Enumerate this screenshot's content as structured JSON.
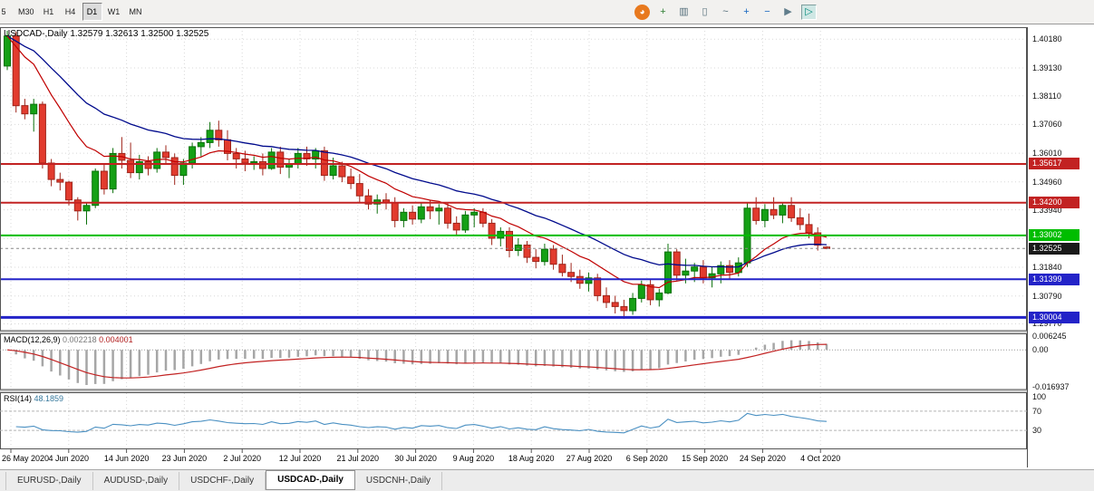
{
  "toolbar": {
    "timeframes": [
      {
        "label": "5",
        "active": false
      },
      {
        "label": "M30",
        "active": false
      },
      {
        "label": "H1",
        "active": false
      },
      {
        "label": "H4",
        "active": false
      },
      {
        "label": "D1",
        "active": true
      },
      {
        "label": "W1",
        "active": false
      },
      {
        "label": "MN",
        "active": false
      }
    ],
    "icons": [
      {
        "name": "mql-community-icon",
        "glyph": "◕",
        "color": "#ffffff",
        "bg": "#e8791e",
        "shape": "disc"
      },
      {
        "name": "new-order-icon",
        "glyph": "+",
        "color": "#2e7d32"
      },
      {
        "name": "chart-bars-icon",
        "glyph": "▥",
        "color": "#546e7a"
      },
      {
        "name": "chart-candles-icon",
        "glyph": "▯",
        "color": "#546e7a"
      },
      {
        "name": "chart-line-icon",
        "glyph": "~",
        "color": "#546e7a"
      },
      {
        "name": "zoom-in-icon",
        "glyph": "+",
        "color": "#1565c0"
      },
      {
        "name": "zoom-out-icon",
        "glyph": "−",
        "color": "#1565c0"
      },
      {
        "name": "auto-scroll-icon",
        "glyph": "▶",
        "color": "#607d8b"
      },
      {
        "name": "chart-shift-icon",
        "glyph": "▷",
        "color": "#00897b",
        "pressed": true
      }
    ]
  },
  "chart_data": {
    "type": "candlestick",
    "symbol": "USDCAD-",
    "timeframe": "Daily",
    "title_symbol": "USDCAD-,Daily",
    "ohlc_text": {
      "open": "1.32579",
      "high": "1.32613",
      "low": "1.32500",
      "close": "1.32525"
    },
    "dates": [
      "26 May",
      "27 May",
      "28 May",
      "29 May",
      "1 Jun",
      "2 Jun",
      "3 Jun",
      "4 Jun",
      "5 Jun",
      "8 Jun",
      "9 Jun",
      "10 Jun",
      "11 Jun",
      "12 Jun",
      "15 Jun",
      "16 Jun",
      "17 Jun",
      "18 Jun",
      "19 Jun",
      "22 Jun",
      "23 Jun",
      "24 Jun",
      "25 Jun",
      "26 Jun",
      "29 Jun",
      "30 Jun",
      "1 Jul",
      "2 Jul",
      "3 Jul",
      "6 Jul",
      "7 Jul",
      "8 Jul",
      "9 Jul",
      "10 Jul",
      "13 Jul",
      "14 Jul",
      "15 Jul",
      "16 Jul",
      "17 Jul",
      "20 Jul",
      "21 Jul",
      "22 Jul",
      "23 Jul",
      "24 Jul",
      "27 Jul",
      "28 Jul",
      "29 Jul",
      "30 Jul",
      "31 Jul",
      "3 Aug",
      "4 Aug",
      "5 Aug",
      "6 Aug",
      "7 Aug",
      "10 Aug",
      "11 Aug",
      "12 Aug",
      "13 Aug",
      "14 Aug",
      "17 Aug",
      "18 Aug",
      "19 Aug",
      "20 Aug",
      "21 Aug",
      "24 Aug",
      "25 Aug",
      "26 Aug",
      "27 Aug",
      "28 Aug",
      "31 Aug",
      "1 Sep",
      "2 Sep",
      "3 Sep",
      "4 Sep",
      "7 Sep",
      "8 Sep",
      "9 Sep",
      "10 Sep",
      "11 Sep",
      "14 Sep",
      "15 Sep",
      "16 Sep",
      "17 Sep",
      "18 Sep",
      "21 Sep",
      "22 Sep",
      "23 Sep",
      "24 Sep",
      "25 Sep",
      "28 Sep",
      "29 Sep",
      "30 Sep",
      "1 Oct",
      "2 Oct"
    ],
    "open": [
      1.392,
      1.403,
      1.3775,
      1.3745,
      1.378,
      1.3565,
      1.3505,
      1.3495,
      1.343,
      1.339,
      1.341,
      1.3535,
      1.347,
      1.36,
      1.3575,
      1.353,
      1.357,
      1.3545,
      1.3605,
      1.3585,
      1.352,
      1.3565,
      1.3625,
      1.364,
      1.3685,
      1.365,
      1.36,
      1.358,
      1.3565,
      1.357,
      1.3545,
      1.3605,
      1.355,
      1.356,
      1.36,
      1.358,
      1.361,
      1.352,
      1.3555,
      1.3515,
      1.349,
      1.3445,
      1.3415,
      1.343,
      1.342,
      1.3355,
      1.3385,
      1.336,
      1.3405,
      1.339,
      1.34,
      1.3345,
      1.332,
      1.3375,
      1.3385,
      1.3345,
      1.329,
      1.3315,
      1.3245,
      1.3265,
      1.322,
      1.3205,
      1.325,
      1.3195,
      1.3165,
      1.315,
      1.3125,
      1.3145,
      1.308,
      1.3055,
      1.304,
      1.3025,
      1.307,
      1.312,
      1.3065,
      1.309,
      1.324,
      1.3155,
      1.317,
      1.3185,
      1.3145,
      1.316,
      1.319,
      1.3165,
      1.32,
      1.34,
      1.3355,
      1.3395,
      1.3375,
      1.341,
      1.3365,
      1.334,
      1.331,
      1.32579
    ],
    "high": [
      1.4049,
      1.4045,
      1.38,
      1.38,
      1.379,
      1.358,
      1.353,
      1.35,
      1.344,
      1.342,
      1.3545,
      1.356,
      1.362,
      1.366,
      1.364,
      1.3595,
      1.359,
      1.362,
      1.363,
      1.36,
      1.358,
      1.364,
      1.366,
      1.3715,
      1.372,
      1.3685,
      1.362,
      1.361,
      1.359,
      1.36,
      1.362,
      1.3625,
      1.358,
      1.362,
      1.3625,
      1.362,
      1.3625,
      1.3585,
      1.357,
      1.3545,
      1.3525,
      1.347,
      1.345,
      1.3455,
      1.344,
      1.34,
      1.341,
      1.342,
      1.343,
      1.3415,
      1.342,
      1.337,
      1.339,
      1.34,
      1.34,
      1.336,
      1.333,
      1.333,
      1.329,
      1.328,
      1.325,
      1.327,
      1.3265,
      1.323,
      1.32,
      1.3175,
      1.3165,
      1.316,
      1.311,
      1.308,
      1.3065,
      1.309,
      1.3135,
      1.314,
      1.3105,
      1.327,
      1.325,
      1.3215,
      1.32,
      1.321,
      1.3185,
      1.3205,
      1.321,
      1.322,
      1.342,
      1.344,
      1.3415,
      1.344,
      1.342,
      1.344,
      1.34,
      1.338,
      1.333,
      1.32613
    ],
    "low": [
      1.3905,
      1.375,
      1.3725,
      1.368,
      1.3545,
      1.348,
      1.3465,
      1.341,
      1.3355,
      1.334,
      1.34,
      1.345,
      1.3455,
      1.3545,
      1.351,
      1.3505,
      1.352,
      1.353,
      1.356,
      1.3485,
      1.3485,
      1.3545,
      1.359,
      1.362,
      1.3625,
      1.3575,
      1.3545,
      1.3535,
      1.354,
      1.352,
      1.354,
      1.3525,
      1.351,
      1.3545,
      1.3555,
      1.3545,
      1.35,
      1.3505,
      1.3495,
      1.347,
      1.342,
      1.3395,
      1.338,
      1.3395,
      1.333,
      1.333,
      1.334,
      1.3345,
      1.336,
      1.334,
      1.3325,
      1.33,
      1.331,
      1.333,
      1.333,
      1.3265,
      1.326,
      1.322,
      1.3225,
      1.32,
      1.318,
      1.319,
      1.3175,
      1.315,
      1.313,
      1.3105,
      1.3095,
      1.306,
      1.3035,
      1.3015,
      1.2995,
      1.301,
      1.3055,
      1.3045,
      1.304,
      1.3085,
      1.3135,
      1.3125,
      1.313,
      1.3125,
      1.311,
      1.3125,
      1.314,
      1.315,
      1.3185,
      1.334,
      1.333,
      1.336,
      1.3345,
      1.335,
      1.332,
      1.329,
      1.3245,
      1.325
    ],
    "close": [
      1.403,
      1.3775,
      1.3745,
      1.378,
      1.3565,
      1.3505,
      1.3495,
      1.343,
      1.339,
      1.341,
      1.3535,
      1.347,
      1.36,
      1.3575,
      1.353,
      1.357,
      1.3545,
      1.3605,
      1.3585,
      1.352,
      1.3565,
      1.3625,
      1.364,
      1.3685,
      1.365,
      1.36,
      1.358,
      1.3565,
      1.357,
      1.3545,
      1.3605,
      1.355,
      1.356,
      1.36,
      1.358,
      1.361,
      1.352,
      1.3555,
      1.3515,
      1.349,
      1.3445,
      1.3415,
      1.343,
      1.342,
      1.3355,
      1.3385,
      1.336,
      1.3405,
      1.339,
      1.34,
      1.3345,
      1.332,
      1.3375,
      1.3385,
      1.3345,
      1.329,
      1.3315,
      1.3245,
      1.3265,
      1.322,
      1.3205,
      1.325,
      1.3195,
      1.3165,
      1.315,
      1.3125,
      1.3145,
      1.308,
      1.3055,
      1.304,
      1.3025,
      1.307,
      1.312,
      1.3065,
      1.309,
      1.324,
      1.3155,
      1.317,
      1.3185,
      1.3145,
      1.316,
      1.319,
      1.3165,
      1.32,
      1.34,
      1.3355,
      1.3395,
      1.3375,
      1.341,
      1.3365,
      1.334,
      1.331,
      1.3265,
      1.32525
    ],
    "x_tick_labels": [
      "26 May 2020",
      "4 Jun 2020",
      "14 Jun 2020",
      "23 Jun 2020",
      "2 Jul 2020",
      "12 Jul 2020",
      "21 Jul 2020",
      "30 Jul 2020",
      "9 Aug 2020",
      "18 Aug 2020",
      "27 Aug 2020",
      "6 Sep 2020",
      "15 Sep 2020",
      "24 Sep 2020",
      "4 Oct 2020"
    ],
    "y_tick_labels": [
      "1.40180",
      "1.39130",
      "1.38110",
      "1.37060",
      "1.36010",
      "1.34960",
      "1.33940",
      "1.32890",
      "1.31840",
      "1.30790",
      "1.29770"
    ],
    "y_range": [
      1.2952,
      1.4062
    ],
    "grid": true,
    "up_color": "#15a015",
    "up_border": "#0a700a",
    "down_color": "#e23b2e",
    "down_border": "#9e241a",
    "ma_overlays": [
      {
        "name": "ema-fast",
        "period": 12,
        "color": "#c00000"
      },
      {
        "name": "ema-slow",
        "period": 26,
        "color": "#000a8c"
      }
    ],
    "hlines": [
      {
        "price": 1.35617,
        "label": "1.35617",
        "color": "#c22222",
        "width": 2
      },
      {
        "price": 1.342,
        "label": "1.34200",
        "color": "#c22222",
        "width": 2
      },
      {
        "price": 1.33002,
        "label": "1.33002",
        "color": "#00bd00",
        "width": 2
      },
      {
        "price": 1.31399,
        "label": "1.31399",
        "color": "#2323c8",
        "width": 2
      },
      {
        "price": 1.30004,
        "label": "1.30004",
        "color": "#2323c8",
        "width": 3
      }
    ],
    "current_price": {
      "value": 1.32525,
      "label": "1.32525",
      "color": "#1a1a1a"
    },
    "macd": {
      "label": "MACD(12,26,9)",
      "value_main": "0.002218",
      "value_signal": "0.004001",
      "fast": 12,
      "slow": 26,
      "signal": 9,
      "hist_color": "#a6a6a6",
      "line_color": "#c22222",
      "axis_labels": [
        "0.006245",
        "0.00",
        "-0.016937"
      ],
      "range": [
        -0.018,
        0.0075
      ]
    },
    "rsi": {
      "label": "RSI(14)",
      "period": 14,
      "value": "48.1859",
      "line_color": "#4a90c2",
      "levels": [
        70,
        30
      ],
      "axis_labels": [
        "100",
        "70",
        "30"
      ]
    }
  },
  "tabs": [
    {
      "label": "EURUSD-,Daily",
      "active": false
    },
    {
      "label": "AUDUSD-,Daily",
      "active": false
    },
    {
      "label": "USDCHF-,Daily",
      "active": false
    },
    {
      "label": "USDCAD-,Daily",
      "active": true
    },
    {
      "label": "USDCNH-,Daily",
      "active": false
    }
  ]
}
